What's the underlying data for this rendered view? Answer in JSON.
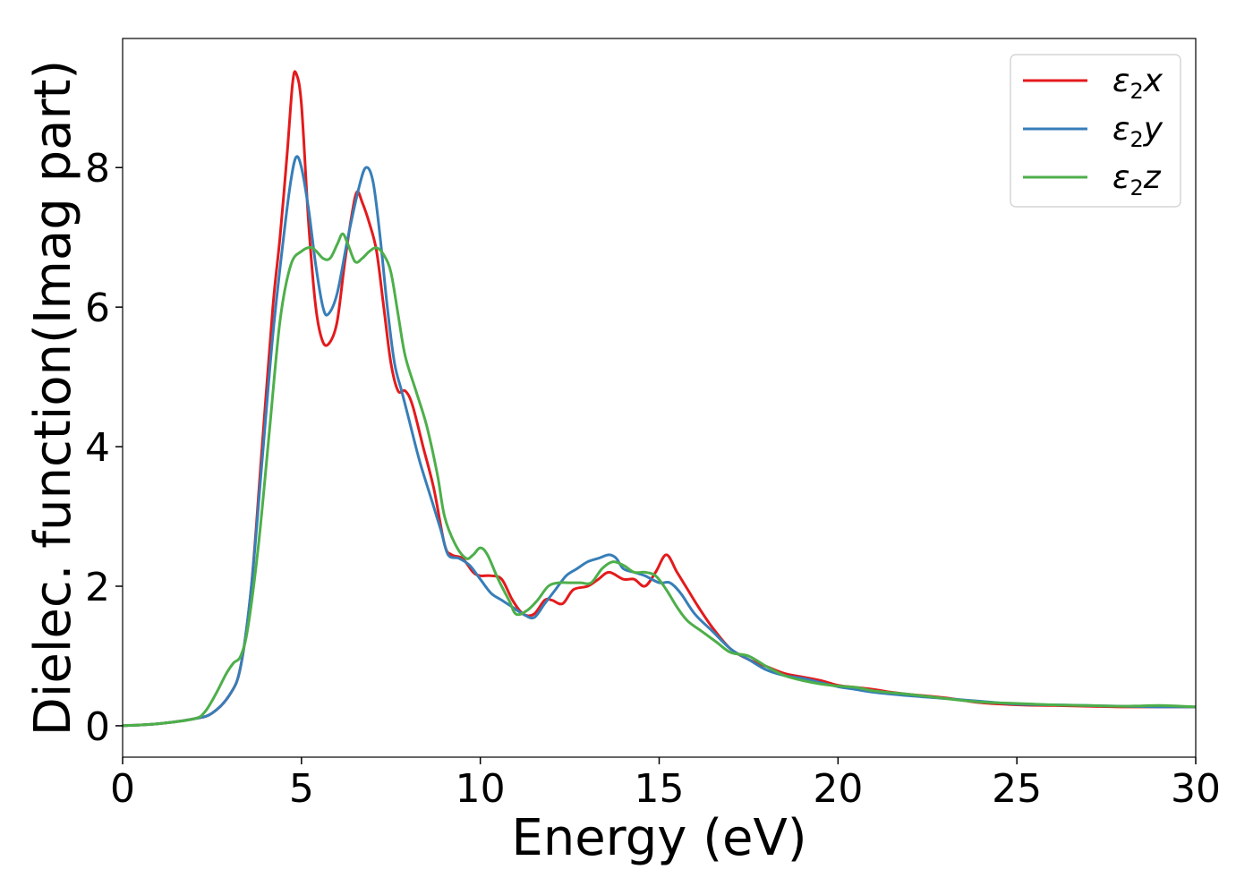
{
  "chart_data": {
    "type": "line",
    "title": "",
    "xlabel": "Energy (eV)",
    "ylabel": "Dielec. function(Imag part)",
    "xlim": [
      0,
      30
    ],
    "ylim": [
      -0.45,
      9.85
    ],
    "xticks": [
      0,
      5,
      10,
      15,
      20,
      25,
      30
    ],
    "yticks": [
      0,
      2,
      4,
      6,
      8
    ],
    "grid": false,
    "legend_position": "top-right",
    "series": [
      {
        "name": "ε2x",
        "legend": {
          "base": "ε",
          "sub": "2",
          "tail": "x"
        },
        "color": "#e41a1c",
        "points": [
          [
            0,
            0
          ],
          [
            1,
            0.03
          ],
          [
            2,
            0.1
          ],
          [
            2.5,
            0.18
          ],
          [
            3,
            0.45
          ],
          [
            3.3,
            0.85
          ],
          [
            3.6,
            2.0
          ],
          [
            3.9,
            4.0
          ],
          [
            4.2,
            6.0
          ],
          [
            4.4,
            7.0
          ],
          [
            4.6,
            8.2
          ],
          [
            4.75,
            9.2
          ],
          [
            4.85,
            9.35
          ],
          [
            5.0,
            8.9
          ],
          [
            5.2,
            7.2
          ],
          [
            5.4,
            6.0
          ],
          [
            5.6,
            5.5
          ],
          [
            5.8,
            5.5
          ],
          [
            6.0,
            5.8
          ],
          [
            6.2,
            6.6
          ],
          [
            6.4,
            7.3
          ],
          [
            6.55,
            7.65
          ],
          [
            6.7,
            7.5
          ],
          [
            6.9,
            7.2
          ],
          [
            7.1,
            6.8
          ],
          [
            7.3,
            6.0
          ],
          [
            7.5,
            5.2
          ],
          [
            7.7,
            4.8
          ],
          [
            7.9,
            4.8
          ],
          [
            8.1,
            4.6
          ],
          [
            8.4,
            4.0
          ],
          [
            8.7,
            3.4
          ],
          [
            9.0,
            2.6
          ],
          [
            9.2,
            2.45
          ],
          [
            9.5,
            2.4
          ],
          [
            9.8,
            2.2
          ],
          [
            10.0,
            2.15
          ],
          [
            10.3,
            2.15
          ],
          [
            10.6,
            2.1
          ],
          [
            10.9,
            1.8
          ],
          [
            11.2,
            1.6
          ],
          [
            11.5,
            1.6
          ],
          [
            11.8,
            1.8
          ],
          [
            12.0,
            1.8
          ],
          [
            12.3,
            1.75
          ],
          [
            12.6,
            1.95
          ],
          [
            13.0,
            2.0
          ],
          [
            13.3,
            2.1
          ],
          [
            13.6,
            2.2
          ],
          [
            14.0,
            2.1
          ],
          [
            14.3,
            2.1
          ],
          [
            14.6,
            2.0
          ],
          [
            14.9,
            2.2
          ],
          [
            15.2,
            2.45
          ],
          [
            15.5,
            2.2
          ],
          [
            15.8,
            1.95
          ],
          [
            16.1,
            1.7
          ],
          [
            16.5,
            1.4
          ],
          [
            17.0,
            1.1
          ],
          [
            17.5,
            0.95
          ],
          [
            18.0,
            0.85
          ],
          [
            18.5,
            0.75
          ],
          [
            19.0,
            0.7
          ],
          [
            19.5,
            0.65
          ],
          [
            20.0,
            0.58
          ],
          [
            20.5,
            0.55
          ],
          [
            21.0,
            0.52
          ],
          [
            21.5,
            0.48
          ],
          [
            22.0,
            0.45
          ],
          [
            23.0,
            0.4
          ],
          [
            24.0,
            0.33
          ],
          [
            25.0,
            0.3
          ],
          [
            26.0,
            0.29
          ],
          [
            27.0,
            0.28
          ],
          [
            28.0,
            0.27
          ],
          [
            29.0,
            0.27
          ],
          [
            30.0,
            0.27
          ]
        ]
      },
      {
        "name": "ε2y",
        "legend": {
          "base": "ε",
          "sub": "2",
          "tail": "y"
        },
        "color": "#377eb8",
        "points": [
          [
            0,
            0
          ],
          [
            1,
            0.03
          ],
          [
            2,
            0.1
          ],
          [
            2.5,
            0.18
          ],
          [
            3,
            0.45
          ],
          [
            3.3,
            0.85
          ],
          [
            3.6,
            2.0
          ],
          [
            3.9,
            3.8
          ],
          [
            4.2,
            5.6
          ],
          [
            4.5,
            7.0
          ],
          [
            4.7,
            7.8
          ],
          [
            4.85,
            8.15
          ],
          [
            5.0,
            8.0
          ],
          [
            5.2,
            7.4
          ],
          [
            5.4,
            6.6
          ],
          [
            5.6,
            6.0
          ],
          [
            5.75,
            5.9
          ],
          [
            6.0,
            6.2
          ],
          [
            6.3,
            7.0
          ],
          [
            6.6,
            7.7
          ],
          [
            6.8,
            8.0
          ],
          [
            7.0,
            7.8
          ],
          [
            7.2,
            7.0
          ],
          [
            7.4,
            6.0
          ],
          [
            7.6,
            5.2
          ],
          [
            7.8,
            4.8
          ],
          [
            8.0,
            4.4
          ],
          [
            8.3,
            3.8
          ],
          [
            8.6,
            3.3
          ],
          [
            8.9,
            2.8
          ],
          [
            9.1,
            2.45
          ],
          [
            9.4,
            2.4
          ],
          [
            9.7,
            2.3
          ],
          [
            10.0,
            2.1
          ],
          [
            10.3,
            1.9
          ],
          [
            10.6,
            1.8
          ],
          [
            10.9,
            1.7
          ],
          [
            11.2,
            1.6
          ],
          [
            11.5,
            1.55
          ],
          [
            11.8,
            1.75
          ],
          [
            12.1,
            1.95
          ],
          [
            12.4,
            2.15
          ],
          [
            12.7,
            2.25
          ],
          [
            13.0,
            2.35
          ],
          [
            13.3,
            2.4
          ],
          [
            13.6,
            2.45
          ],
          [
            13.8,
            2.4
          ],
          [
            14.0,
            2.25
          ],
          [
            14.3,
            2.2
          ],
          [
            14.6,
            2.15
          ],
          [
            15.0,
            2.05
          ],
          [
            15.3,
            2.05
          ],
          [
            15.6,
            1.9
          ],
          [
            16.0,
            1.6
          ],
          [
            16.5,
            1.35
          ],
          [
            17.0,
            1.1
          ],
          [
            17.5,
            0.95
          ],
          [
            18.0,
            0.8
          ],
          [
            18.5,
            0.72
          ],
          [
            19.0,
            0.68
          ],
          [
            19.5,
            0.62
          ],
          [
            20.0,
            0.56
          ],
          [
            20.5,
            0.52
          ],
          [
            21.0,
            0.48
          ],
          [
            22.0,
            0.43
          ],
          [
            23.0,
            0.39
          ],
          [
            24.0,
            0.35
          ],
          [
            25.0,
            0.31
          ],
          [
            26.0,
            0.3
          ],
          [
            27.0,
            0.29
          ],
          [
            28.0,
            0.28
          ],
          [
            29.0,
            0.27
          ],
          [
            30.0,
            0.27
          ]
        ]
      },
      {
        "name": "ε2z",
        "legend": {
          "base": "ε",
          "sub": "2",
          "tail": "z"
        },
        "color": "#4daf4a",
        "points": [
          [
            0,
            0
          ],
          [
            1,
            0.03
          ],
          [
            2,
            0.1
          ],
          [
            2.3,
            0.2
          ],
          [
            2.6,
            0.45
          ],
          [
            2.9,
            0.75
          ],
          [
            3.1,
            0.9
          ],
          [
            3.3,
            1.0
          ],
          [
            3.5,
            1.4
          ],
          [
            3.8,
            2.6
          ],
          [
            4.1,
            4.2
          ],
          [
            4.4,
            5.8
          ],
          [
            4.7,
            6.6
          ],
          [
            5.0,
            6.8
          ],
          [
            5.3,
            6.85
          ],
          [
            5.6,
            6.7
          ],
          [
            5.8,
            6.7
          ],
          [
            6.0,
            6.9
          ],
          [
            6.15,
            7.05
          ],
          [
            6.3,
            6.9
          ],
          [
            6.5,
            6.65
          ],
          [
            6.7,
            6.7
          ],
          [
            6.9,
            6.8
          ],
          [
            7.1,
            6.85
          ],
          [
            7.3,
            6.75
          ],
          [
            7.5,
            6.5
          ],
          [
            7.7,
            5.9
          ],
          [
            7.9,
            5.3
          ],
          [
            8.2,
            4.8
          ],
          [
            8.5,
            4.3
          ],
          [
            8.8,
            3.6
          ],
          [
            9.0,
            3.0
          ],
          [
            9.3,
            2.6
          ],
          [
            9.6,
            2.4
          ],
          [
            9.8,
            2.45
          ],
          [
            10.0,
            2.55
          ],
          [
            10.2,
            2.45
          ],
          [
            10.5,
            2.1
          ],
          [
            10.8,
            1.8
          ],
          [
            11.0,
            1.6
          ],
          [
            11.3,
            1.65
          ],
          [
            11.6,
            1.8
          ],
          [
            11.9,
            2.0
          ],
          [
            12.2,
            2.05
          ],
          [
            12.5,
            2.05
          ],
          [
            12.8,
            2.05
          ],
          [
            13.1,
            2.05
          ],
          [
            13.4,
            2.25
          ],
          [
            13.7,
            2.35
          ],
          [
            14.0,
            2.3
          ],
          [
            14.3,
            2.2
          ],
          [
            14.6,
            2.2
          ],
          [
            14.9,
            2.15
          ],
          [
            15.2,
            1.95
          ],
          [
            15.5,
            1.7
          ],
          [
            15.8,
            1.5
          ],
          [
            16.2,
            1.35
          ],
          [
            16.6,
            1.2
          ],
          [
            17.0,
            1.05
          ],
          [
            17.5,
            1.0
          ],
          [
            18.0,
            0.85
          ],
          [
            18.5,
            0.72
          ],
          [
            19.0,
            0.65
          ],
          [
            19.5,
            0.6
          ],
          [
            20.0,
            0.57
          ],
          [
            20.5,
            0.55
          ],
          [
            21.0,
            0.5
          ],
          [
            22.0,
            0.45
          ],
          [
            23.0,
            0.39
          ],
          [
            24.0,
            0.34
          ],
          [
            25.0,
            0.32
          ],
          [
            26.0,
            0.3
          ],
          [
            27.0,
            0.29
          ],
          [
            28.0,
            0.28
          ],
          [
            29.0,
            0.29
          ],
          [
            30.0,
            0.27
          ]
        ]
      }
    ]
  }
}
